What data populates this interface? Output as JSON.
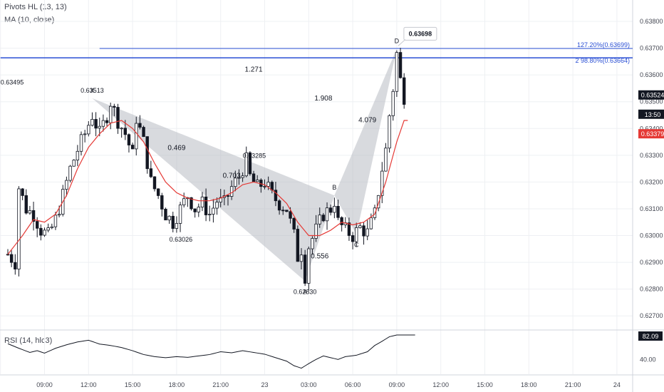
{
  "legend": {
    "pivots": "Pivots HL (13, 13)",
    "ma": "MA (10, close)",
    "rsi": "RSI (14, hlc3)"
  },
  "chart_data": {
    "type": "candlestick",
    "ylim": [
      0.6265,
      0.6388
    ],
    "price_ticks": [
      "0.62700",
      "0.62800",
      "0.62900",
      "0.63000",
      "0.63100",
      "0.63200",
      "0.63300",
      "0.63400",
      "0.63500",
      "0.63600",
      "0.63700",
      "0.63800"
    ],
    "time_ticks": [
      {
        "label": "06:00",
        "bar": -2
      },
      {
        "label": "09:00",
        "bar": 10
      },
      {
        "label": "12:00",
        "bar": 22
      },
      {
        "label": "15:00",
        "bar": 34
      },
      {
        "label": "18:00",
        "bar": 46
      },
      {
        "label": "21:00",
        "bar": 58
      },
      {
        "label": "23",
        "bar": 70
      },
      {
        "label": "03:00",
        "bar": 82
      },
      {
        "label": "06:00",
        "bar": 94
      },
      {
        "label": "09:00",
        "bar": 106
      },
      {
        "label": "12:00",
        "bar": 118
      },
      {
        "label": "15:00",
        "bar": 130
      },
      {
        "label": "18:00",
        "bar": 142
      },
      {
        "label": "21:00",
        "bar": 154
      },
      {
        "label": "24",
        "bar": 166
      }
    ],
    "ohlc_anchors": [
      [
        0,
        0.6293
      ],
      [
        2,
        0.629
      ],
      [
        3,
        0.6318
      ],
      [
        5,
        0.631
      ],
      [
        7,
        0.6308
      ],
      [
        9,
        0.6302
      ],
      [
        11,
        0.63
      ],
      [
        13,
        0.6306
      ],
      [
        15,
        0.6315
      ],
      [
        17,
        0.6325
      ],
      [
        19,
        0.6332
      ],
      [
        21,
        0.6338
      ],
      [
        23,
        0.6345
      ],
      [
        25,
        0.6338
      ],
      [
        27,
        0.6345
      ],
      [
        28,
        0.635
      ],
      [
        30,
        0.6343
      ],
      [
        32,
        0.6338
      ],
      [
        34,
        0.633
      ],
      [
        35,
        0.6344
      ],
      [
        37,
        0.6335
      ],
      [
        39,
        0.632
      ],
      [
        41,
        0.6315
      ],
      [
        43,
        0.6308
      ],
      [
        45,
        0.6305
      ],
      [
        47,
        0.631
      ],
      [
        49,
        0.6315
      ],
      [
        51,
        0.631
      ],
      [
        53,
        0.6312
      ],
      [
        55,
        0.6308
      ],
      [
        57,
        0.6313
      ],
      [
        59,
        0.6312
      ],
      [
        61,
        0.6318
      ],
      [
        63,
        0.6322
      ],
      [
        65,
        0.6328
      ],
      [
        66,
        0.6322
      ],
      [
        68,
        0.6318
      ],
      [
        70,
        0.632
      ],
      [
        72,
        0.6315
      ],
      [
        74,
        0.6312
      ],
      [
        76,
        0.631
      ],
      [
        78,
        0.63
      ],
      [
        79,
        0.6292
      ],
      [
        80,
        0.6295
      ],
      [
        81,
        0.6285
      ],
      [
        82,
        0.6296
      ],
      [
        84,
        0.6302
      ],
      [
        86,
        0.6308
      ],
      [
        88,
        0.631
      ],
      [
        89,
        0.6313
      ],
      [
        90,
        0.6305
      ],
      [
        92,
        0.6302
      ],
      [
        94,
        0.63
      ],
      [
        96,
        0.6303
      ],
      [
        98,
        0.6301
      ],
      [
        100,
        0.6308
      ],
      [
        102,
        0.6325
      ],
      [
        103,
        0.6332
      ],
      [
        104,
        0.6345
      ],
      [
        105,
        0.6355
      ],
      [
        106,
        0.6368
      ],
      [
        107,
        0.6358
      ],
      [
        108,
        0.6352
      ]
    ],
    "current_bar": 108,
    "ma_anchors": [
      [
        0,
        0.6293
      ],
      [
        4,
        0.63
      ],
      [
        7,
        0.6306
      ],
      [
        10,
        0.6305
      ],
      [
        13,
        0.6308
      ],
      [
        16,
        0.6315
      ],
      [
        19,
        0.6325
      ],
      [
        22,
        0.6333
      ],
      [
        25,
        0.6338
      ],
      [
        28,
        0.6342
      ],
      [
        31,
        0.6343
      ],
      [
        34,
        0.634
      ],
      [
        37,
        0.6335
      ],
      [
        40,
        0.6327
      ],
      [
        43,
        0.632
      ],
      [
        46,
        0.6316
      ],
      [
        49,
        0.6314
      ],
      [
        52,
        0.6313
      ],
      [
        55,
        0.6313
      ],
      [
        58,
        0.6314
      ],
      [
        61,
        0.6316
      ],
      [
        64,
        0.6319
      ],
      [
        67,
        0.632
      ],
      [
        70,
        0.6319
      ],
      [
        73,
        0.6316
      ],
      [
        76,
        0.6312
      ],
      [
        79,
        0.6305
      ],
      [
        82,
        0.63
      ],
      [
        85,
        0.63
      ],
      [
        88,
        0.6302
      ],
      [
        91,
        0.6305
      ],
      [
        94,
        0.6304
      ],
      [
        97,
        0.6305
      ],
      [
        100,
        0.6308
      ],
      [
        103,
        0.632
      ],
      [
        106,
        0.6335
      ],
      [
        108,
        0.6343
      ]
    ],
    "rsi_anchors": [
      [
        0,
        0.75
      ],
      [
        3,
        0.62
      ],
      [
        6,
        0.5
      ],
      [
        8,
        0.55
      ],
      [
        10,
        0.48
      ],
      [
        13,
        0.62
      ],
      [
        16,
        0.72
      ],
      [
        19,
        0.8
      ],
      [
        22,
        0.85
      ],
      [
        25,
        0.74
      ],
      [
        28,
        0.7
      ],
      [
        31,
        0.64
      ],
      [
        34,
        0.55
      ],
      [
        37,
        0.44
      ],
      [
        40,
        0.38
      ],
      [
        43,
        0.35
      ],
      [
        46,
        0.38
      ],
      [
        49,
        0.36
      ],
      [
        52,
        0.4
      ],
      [
        55,
        0.44
      ],
      [
        58,
        0.52
      ],
      [
        61,
        0.49
      ],
      [
        64,
        0.55
      ],
      [
        67,
        0.5
      ],
      [
        70,
        0.45
      ],
      [
        73,
        0.35
      ],
      [
        76,
        0.25
      ],
      [
        78,
        0.12
      ],
      [
        80,
        0.05
      ],
      [
        82,
        0.18
      ],
      [
        84,
        0.3
      ],
      [
        86,
        0.4
      ],
      [
        88,
        0.35
      ],
      [
        90,
        0.3
      ],
      [
        92,
        0.38
      ],
      [
        95,
        0.42
      ],
      [
        98,
        0.52
      ],
      [
        100,
        0.7
      ],
      [
        102,
        0.82
      ],
      [
        104,
        0.95
      ],
      [
        106,
        1.0
      ],
      [
        108,
        1.0
      ]
    ],
    "rsi_axis": [
      "40.00"
    ],
    "rsi_current": "82.09",
    "pattern": {
      "points": [
        {
          "label": "X",
          "bar": 23,
          "price": 0.63513,
          "price_label": "0.63513"
        },
        {
          "label": "A",
          "bar": 81,
          "price": 0.6283,
          "price_label": "0.62830"
        },
        {
          "label": "B",
          "bar": 89,
          "price": 0.6315,
          "price_label": ""
        },
        {
          "label": "C",
          "bar": 95,
          "price": 0.63005,
          "price_label": ""
        },
        {
          "label": "D",
          "bar": 106,
          "price": 0.63698,
          "price_label": ""
        }
      ],
      "ratios": [
        {
          "text": "0.469",
          "bar": 46,
          "price": 0.63319
        },
        {
          "text": "0.703",
          "bar": 61,
          "price": 0.63216
        },
        {
          "text": "0.556",
          "bar": 85,
          "price": 0.62915
        },
        {
          "text": "1.271",
          "bar": 67,
          "price": 0.63613
        },
        {
          "text": "1.908",
          "bar": 86,
          "price": 0.63504
        },
        {
          "text": "4.079",
          "bar": 98,
          "price": 0.63423
        }
      ]
    },
    "pivot_labels": [
      {
        "text": "0.63495",
        "bar": 0,
        "price": 0.63565
      },
      {
        "text": "0.63026",
        "bar": 46,
        "price": 0.62978
      },
      {
        "text": "0.63285",
        "bar": 66,
        "price": 0.6329
      }
    ],
    "d_callout": "0.63698",
    "fib_levels": [
      {
        "label": "127.20%(0.63699)",
        "price": 0.63699,
        "from_bar": 25
      },
      {
        "label": "2 98.80%(0.63664)",
        "price": 0.63664,
        "from_bar": -2
      }
    ],
    "price_tags": [
      {
        "text": "0.63524",
        "price": 0.63524,
        "bg": "#131722",
        "color": "#ffffff"
      },
      {
        "text": "13:50",
        "price": 0.63452,
        "bg": "#131722",
        "color": "#ffffff"
      },
      {
        "text": "0.63379",
        "price": 0.63379,
        "bg": "#e53935",
        "color": "#ffffff"
      }
    ],
    "colors": {
      "candle": "#131722",
      "ma": "#e53935",
      "pattern_fill": "#b2b5be",
      "fib_line": "#2a4fd4",
      "grid": "#eef0f3",
      "axis_text": "#434651"
    },
    "grid": true
  }
}
